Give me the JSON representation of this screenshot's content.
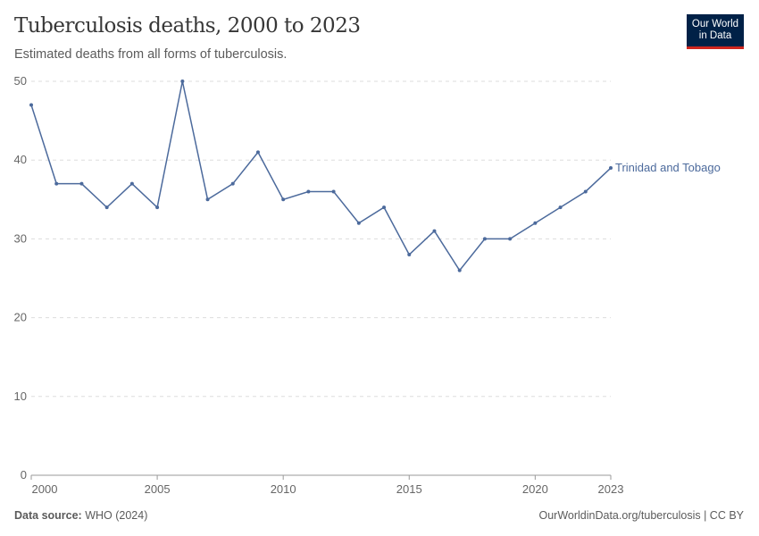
{
  "header": {
    "title": "Tuberculosis deaths, 2000 to 2023",
    "subtitle": "Estimated deaths from all forms of tuberculosis.",
    "logo": "Our World in Data"
  },
  "footer": {
    "source_label": "Data source:",
    "source": "WHO (2024)",
    "link": "OurWorldinData.org/tuberculosis | CC BY"
  },
  "chart_data": {
    "type": "line",
    "title": "Tuberculosis deaths, 2000 to 2023",
    "subtitle": "Estimated deaths from all forms of tuberculosis.",
    "ylim": [
      0,
      50
    ],
    "xlim": [
      2000,
      2023
    ],
    "yticks": [
      0,
      10,
      20,
      30,
      40,
      50
    ],
    "xticks": [
      2000,
      2005,
      2010,
      2015,
      2020,
      2023
    ],
    "grid": "horizontal dashed",
    "legend": "right end-label",
    "series": [
      {
        "name": "Trinidad and Tobago",
        "color": "#4c6a9c",
        "x": [
          2000,
          2001,
          2002,
          2003,
          2004,
          2005,
          2006,
          2007,
          2008,
          2009,
          2010,
          2011,
          2012,
          2013,
          2014,
          2015,
          2016,
          2017,
          2018,
          2019,
          2020,
          2021,
          2022,
          2023
        ],
        "values": [
          47,
          37,
          37,
          34,
          37,
          34,
          50,
          35,
          37,
          41,
          35,
          36,
          36,
          32,
          34,
          28,
          31,
          26,
          30,
          30,
          32,
          34,
          36,
          39
        ]
      }
    ]
  }
}
